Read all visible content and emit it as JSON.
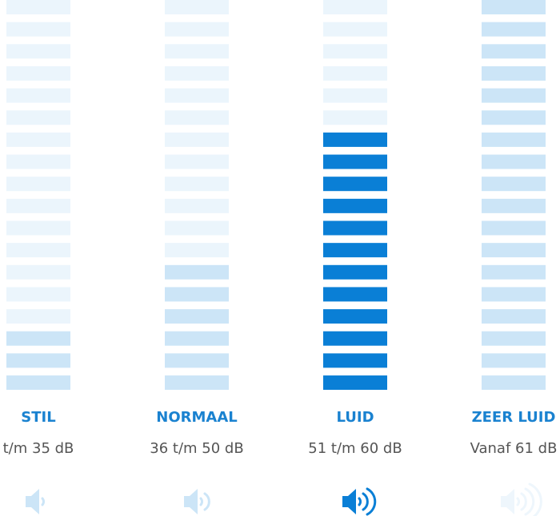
{
  "levels": [
    {
      "label": "STIL",
      "range": "t/m 35 dB",
      "bars": 18,
      "filled": 3,
      "filled_color": "#cce5f7",
      "empty_color": "#ebf5fc",
      "icon_color": "#cce5f7",
      "waves": 1
    },
    {
      "label": "NORMAAL",
      "range": "36 t/m 50 dB",
      "bars": 18,
      "filled": 6,
      "filled_color": "#cce5f7",
      "empty_color": "#ebf5fc",
      "icon_color": "#cce5f7",
      "waves": 2
    },
    {
      "label": "LUID",
      "range": "51 t/m 60 dB",
      "bars": 18,
      "filled": 12,
      "filled_color": "#0a7fd6",
      "empty_color": "#ebf5fc",
      "icon_color": "#0a7fd6",
      "waves": 3
    },
    {
      "label": "ZEER LUID",
      "range": "Vanaf 61 dB",
      "bars": 18,
      "filled": 18,
      "filled_color": "#cce5f7",
      "empty_color": "#ebf5fc",
      "icon_color": "#eef6fc",
      "waves": 4
    }
  ]
}
